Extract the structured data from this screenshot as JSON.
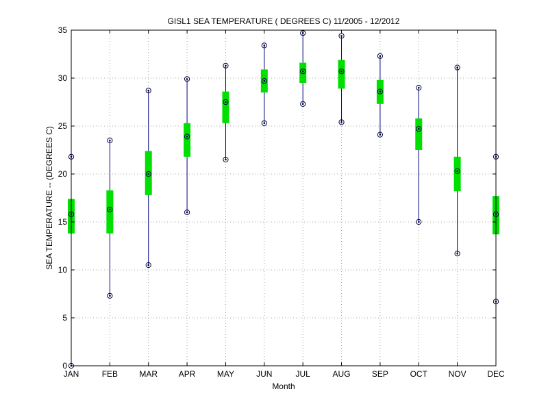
{
  "chart_data": {
    "type": "boxplot",
    "title": "GISL1  SEA TEMPERATURE ( DEGREES C) 11/2005 - 12/2012",
    "xlabel": "Month",
    "ylabel": "SEA TEMPERATURE -- (DEGREES C)",
    "ylim": [
      0,
      35
    ],
    "yticks": [
      0,
      5,
      10,
      15,
      20,
      25,
      30,
      35
    ],
    "grid": true,
    "categories": [
      "JAN",
      "FEB",
      "MAR",
      "APR",
      "MAY",
      "JUN",
      "JUL",
      "AUG",
      "SEP",
      "OCT",
      "NOV",
      "DEC"
    ],
    "min": [
      0.0,
      7.3,
      10.5,
      16.0,
      21.5,
      25.3,
      27.3,
      25.4,
      24.1,
      15.0,
      11.7,
      6.7
    ],
    "q1": [
      13.8,
      13.8,
      17.8,
      21.8,
      25.3,
      28.5,
      29.5,
      28.9,
      27.3,
      22.5,
      18.2,
      13.7
    ],
    "median": [
      15.8,
      16.3,
      20.0,
      23.9,
      27.5,
      29.7,
      30.7,
      30.7,
      28.6,
      24.7,
      20.3,
      15.8
    ],
    "q3": [
      17.4,
      18.3,
      22.4,
      25.3,
      28.6,
      30.9,
      31.6,
      31.9,
      29.8,
      25.8,
      21.8,
      17.7
    ],
    "max": [
      21.8,
      23.5,
      28.7,
      29.9,
      31.3,
      33.4,
      34.7,
      34.4,
      32.3,
      29.0,
      31.1,
      21.8
    ],
    "colors": {
      "whisker": "#000080",
      "box": "#00e000",
      "marker": "#000040",
      "grid": "#888888",
      "axis": "#000000"
    }
  }
}
